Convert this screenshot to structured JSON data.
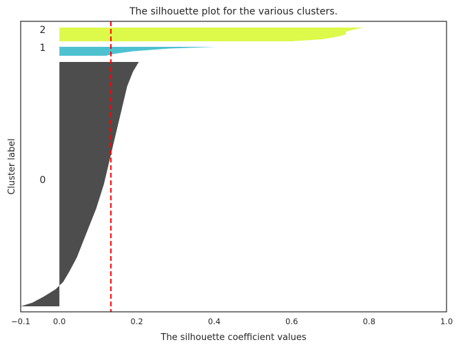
{
  "chart_data": {
    "type": "area",
    "title": "The silhouette plot for the various clusters.",
    "xlabel": "The silhouette coefficient values",
    "ylabel": "Cluster label",
    "xlim": [
      -0.1,
      1.0
    ],
    "xticks": [
      -0.1,
      0.0,
      0.2,
      0.4,
      0.6,
      0.8,
      1.0
    ],
    "xtick_labels": [
      "−0.1",
      "0.0",
      "0.2",
      "0.4",
      "0.6",
      "0.8",
      "1.0"
    ],
    "grid": false,
    "average_silhouette_score": 0.133,
    "average_line_color": "#ff0000",
    "clusters": [
      {
        "label": "0",
        "color": "#4d4d4d",
        "profile": [
          [
            0.0,
            0.205
          ],
          [
            0.04,
            0.19
          ],
          [
            0.1,
            0.175
          ],
          [
            0.2,
            0.16
          ],
          [
            0.3,
            0.145
          ],
          [
            0.4,
            0.13
          ],
          [
            0.5,
            0.115
          ],
          [
            0.6,
            0.095
          ],
          [
            0.7,
            0.07
          ],
          [
            0.8,
            0.045
          ],
          [
            0.86,
            0.025
          ],
          [
            0.9,
            0.01
          ],
          [
            0.93,
            -0.01
          ],
          [
            0.96,
            -0.04
          ],
          [
            0.985,
            -0.07
          ],
          [
            1.0,
            -0.1
          ]
        ]
      },
      {
        "label": "1",
        "color": "#4ec1d1",
        "profile": [
          [
            0.0,
            0.405
          ],
          [
            0.2,
            0.28
          ],
          [
            0.5,
            0.19
          ],
          [
            0.8,
            0.14
          ],
          [
            1.0,
            0.12
          ]
        ]
      },
      {
        "label": "2",
        "color": "#ddf94a",
        "profile": [
          [
            0.0,
            0.785
          ],
          [
            0.15,
            0.76
          ],
          [
            0.3,
            0.74
          ],
          [
            0.5,
            0.74
          ],
          [
            0.65,
            0.72
          ],
          [
            0.75,
            0.7
          ],
          [
            0.85,
            0.68
          ],
          [
            1.0,
            0.6
          ]
        ]
      }
    ]
  }
}
